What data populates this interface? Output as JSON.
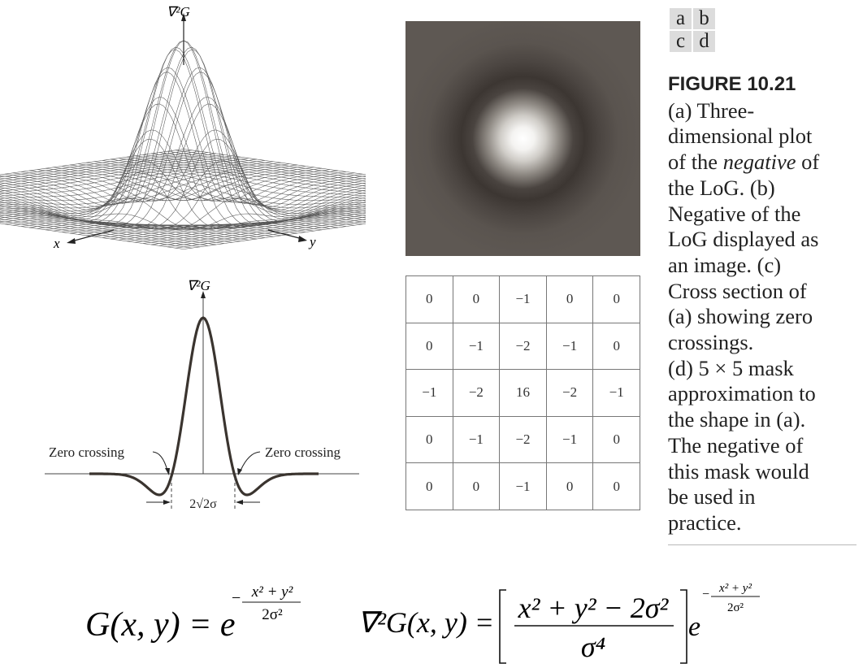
{
  "figure": {
    "panel_key": [
      [
        "a",
        "b"
      ],
      [
        "c",
        "d"
      ]
    ],
    "title": "FIGURE 10.21",
    "caption_lines": [
      "(a) Three-",
      "dimensional plot",
      "of the |negative| of",
      "the LoG. (b)",
      "Negative of the",
      "LoG displayed as",
      "an image. (c)",
      "Cross section of",
      "(a) showing zero",
      "crossings.",
      "(d) 5 × 5 mask",
      "approximation to",
      "the shape in (a).",
      "The negative of",
      "this mask would",
      "be used in",
      "practice."
    ]
  },
  "panel_a": {
    "axis_top": "∇²G",
    "axis_x": "x",
    "axis_y": "y"
  },
  "panel_c": {
    "axis_top": "∇²G",
    "zero_crossing_left": "Zero crossing",
    "zero_crossing_right": "Zero crossing",
    "width_label": "2√2σ"
  },
  "mask": [
    [
      "0",
      "0",
      "−1",
      "0",
      "0"
    ],
    [
      "0",
      "−1",
      "−2",
      "−1",
      "0"
    ],
    [
      "−1",
      "−2",
      "16",
      "−2",
      "−1"
    ],
    [
      "0",
      "−1",
      "−2",
      "−1",
      "0"
    ],
    [
      "0",
      "0",
      "−1",
      "0",
      "0"
    ]
  ],
  "equations": {
    "gaussian_lhs": "G(x, y) = e",
    "gaussian_exp_num": "x² + y²",
    "gaussian_exp_den": "2σ²",
    "log_lhs": "∇²G(x, y) =",
    "log_num": "x² + y² − 2σ²",
    "log_den": "σ⁴",
    "log_e": "e",
    "log_exp_num": "x² + y²",
    "log_exp_den": "2σ²"
  }
}
